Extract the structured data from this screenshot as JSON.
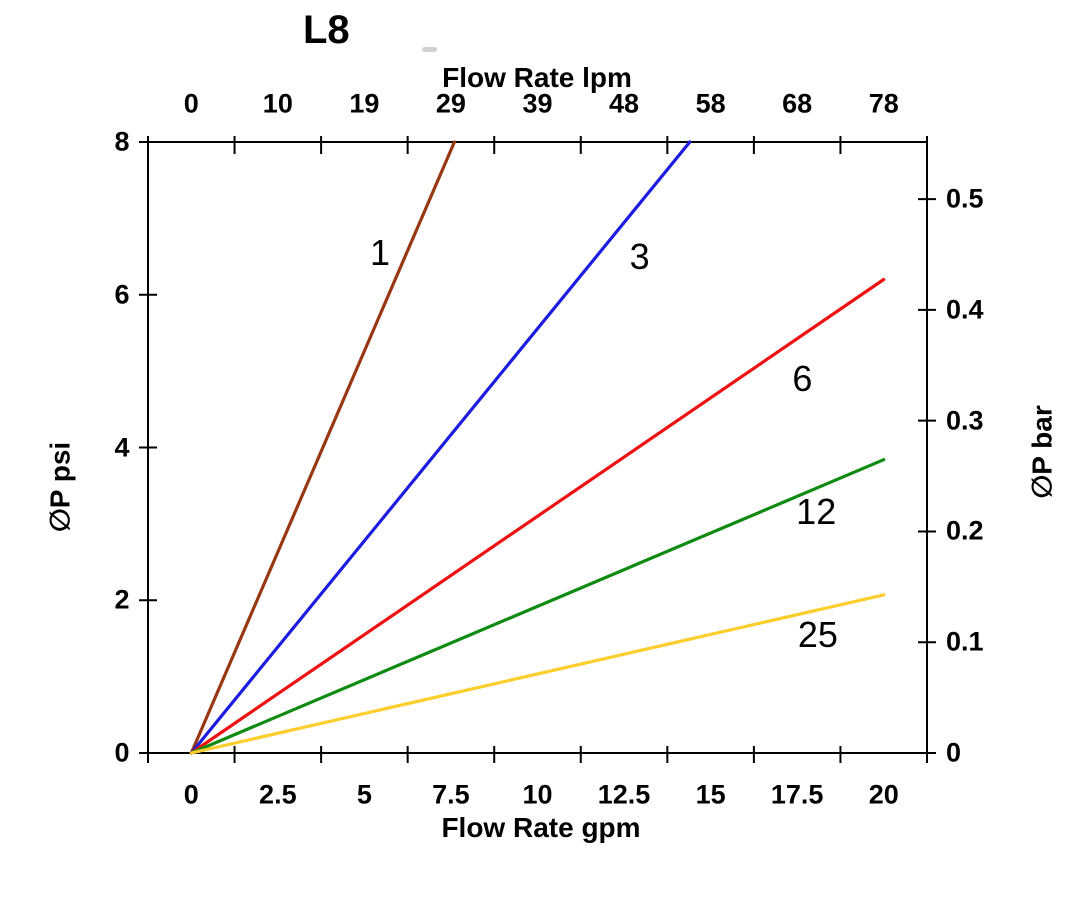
{
  "title": "L8",
  "chart_data": {
    "type": "line",
    "title": "L8",
    "grid": false,
    "legend": "none (labels placed next to lines)",
    "x_axis_bottom": {
      "label": "Flow Rate gpm",
      "tick_labels": [
        "0",
        "2.5",
        "5",
        "7.5",
        "10",
        "12.5",
        "15",
        "17.5",
        "20"
      ],
      "tick_values_gpm": [
        0,
        2.5,
        5,
        7.5,
        10,
        12.5,
        15,
        17.5,
        20
      ],
      "style": "labels centered between tick marks, 10 tick marks / 9 intervals"
    },
    "x_axis_top": {
      "label": "Flow Rate lpm",
      "tick_labels": [
        "0",
        "10",
        "19",
        "29",
        "39",
        "48",
        "58",
        "68",
        "78"
      ]
    },
    "y_axis_left": {
      "label": "∅P psi",
      "tick_labels": [
        "0",
        "2",
        "4",
        "6",
        "8"
      ],
      "tick_values_psi": [
        0,
        2,
        4,
        6,
        8
      ],
      "range": [
        0,
        8
      ]
    },
    "y_axis_right": {
      "label": "∅P bar",
      "tick_labels": [
        "0",
        "0.1",
        "0.2",
        "0.3",
        "0.4",
        "0.5"
      ],
      "tick_values_bar": [
        0,
        0.1,
        0.2,
        0.3,
        0.4,
        0.5
      ],
      "psi_per_bar": 14.5038
    },
    "series": [
      {
        "name": "1",
        "color": "#983812",
        "points_gpm_psi": [
          [
            0,
            0
          ],
          [
            7.6,
            8
          ]
        ],
        "label_pos_gpm_psi": [
          5.45,
          6.55
        ]
      },
      {
        "name": "3",
        "color": "#1C1CE0",
        "points_gpm_psi": [
          [
            0,
            0
          ],
          [
            14.4,
            8
          ]
        ],
        "label_pos_gpm_psi": [
          12.95,
          6.5
        ]
      },
      {
        "name": "6",
        "color": "#EE1111",
        "points_gpm_psi": [
          [
            0,
            0
          ],
          [
            20,
            6.2
          ]
        ],
        "label_pos_gpm_psi": [
          17.65,
          4.9
        ]
      },
      {
        "name": "12",
        "color": "#0F8B12",
        "points_gpm_psi": [
          [
            0,
            0
          ],
          [
            20,
            3.84
          ]
        ],
        "label_pos_gpm_psi": [
          18.05,
          3.15
        ]
      },
      {
        "name": "25",
        "color": "#FCCE2C",
        "points_gpm_psi": [
          [
            0,
            0
          ],
          [
            20,
            2.07
          ]
        ],
        "label_pos_gpm_psi": [
          18.1,
          1.55
        ]
      }
    ]
  }
}
